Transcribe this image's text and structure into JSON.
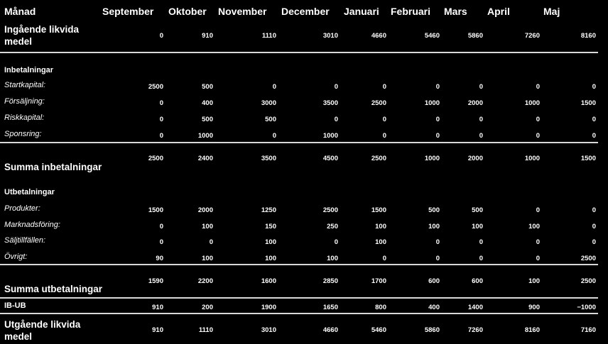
{
  "header": {
    "label": "Månad",
    "months": [
      "September",
      "Oktober",
      "November",
      "December",
      "Januari",
      "Februari",
      "Mars",
      "April",
      "Maj"
    ]
  },
  "opening": {
    "label": "Ingående likvida medel",
    "values": [
      "0",
      "910",
      "1110",
      "3010",
      "4660",
      "5460",
      "5860",
      "7260",
      "8160"
    ]
  },
  "inflows": {
    "heading": "Inbetalningar",
    "rows": [
      {
        "label": "Startkapital:",
        "values": [
          "2500",
          "500",
          "0",
          "0",
          "0",
          "0",
          "0",
          "0",
          "0"
        ]
      },
      {
        "label": "Försäljning:",
        "values": [
          "0",
          "400",
          "3000",
          "3500",
          "2500",
          "1000",
          "2000",
          "1000",
          "1500"
        ]
      },
      {
        "label": "Riskkapital:",
        "values": [
          "0",
          "500",
          "500",
          "0",
          "0",
          "0",
          "0",
          "0",
          "0"
        ]
      },
      {
        "label": "Sponsring:",
        "values": [
          "0",
          "1000",
          "0",
          "1000",
          "0",
          "0",
          "0",
          "0",
          "0"
        ]
      }
    ],
    "total_label": "Summa inbetalningar",
    "total_values": [
      "2500",
      "2400",
      "3500",
      "4500",
      "2500",
      "1000",
      "2000",
      "1000",
      "1500"
    ]
  },
  "outflows": {
    "heading": "Utbetalningar",
    "rows": [
      {
        "label": "Produkter:",
        "values": [
          "1500",
          "2000",
          "1250",
          "2500",
          "1500",
          "500",
          "500",
          "0",
          "0"
        ]
      },
      {
        "label": "Marknadsföring:",
        "values": [
          "0",
          "100",
          "150",
          "250",
          "100",
          "100",
          "100",
          "100",
          "0"
        ]
      },
      {
        "label": "Säljtillfällen:",
        "values": [
          "0",
          "0",
          "100",
          "0",
          "100",
          "0",
          "0",
          "0",
          "0"
        ]
      },
      {
        "label": "Övrigt:",
        "values": [
          "90",
          "100",
          "100",
          "100",
          "0",
          "0",
          "0",
          "0",
          "2500"
        ]
      }
    ],
    "total_label": "Summa utbetalningar",
    "total_values": [
      "1590",
      "2200",
      "1600",
      "2850",
      "1700",
      "600",
      "600",
      "100",
      "2500"
    ]
  },
  "ib_ub": {
    "label": "IB-UB",
    "values": [
      "910",
      "200",
      "1900",
      "1650",
      "800",
      "400",
      "1400",
      "900",
      "−1000"
    ]
  },
  "closing": {
    "label": "Utgående likvida medel",
    "values": [
      "910",
      "1110",
      "3010",
      "4660",
      "5460",
      "5860",
      "7260",
      "8160",
      "7160"
    ]
  }
}
